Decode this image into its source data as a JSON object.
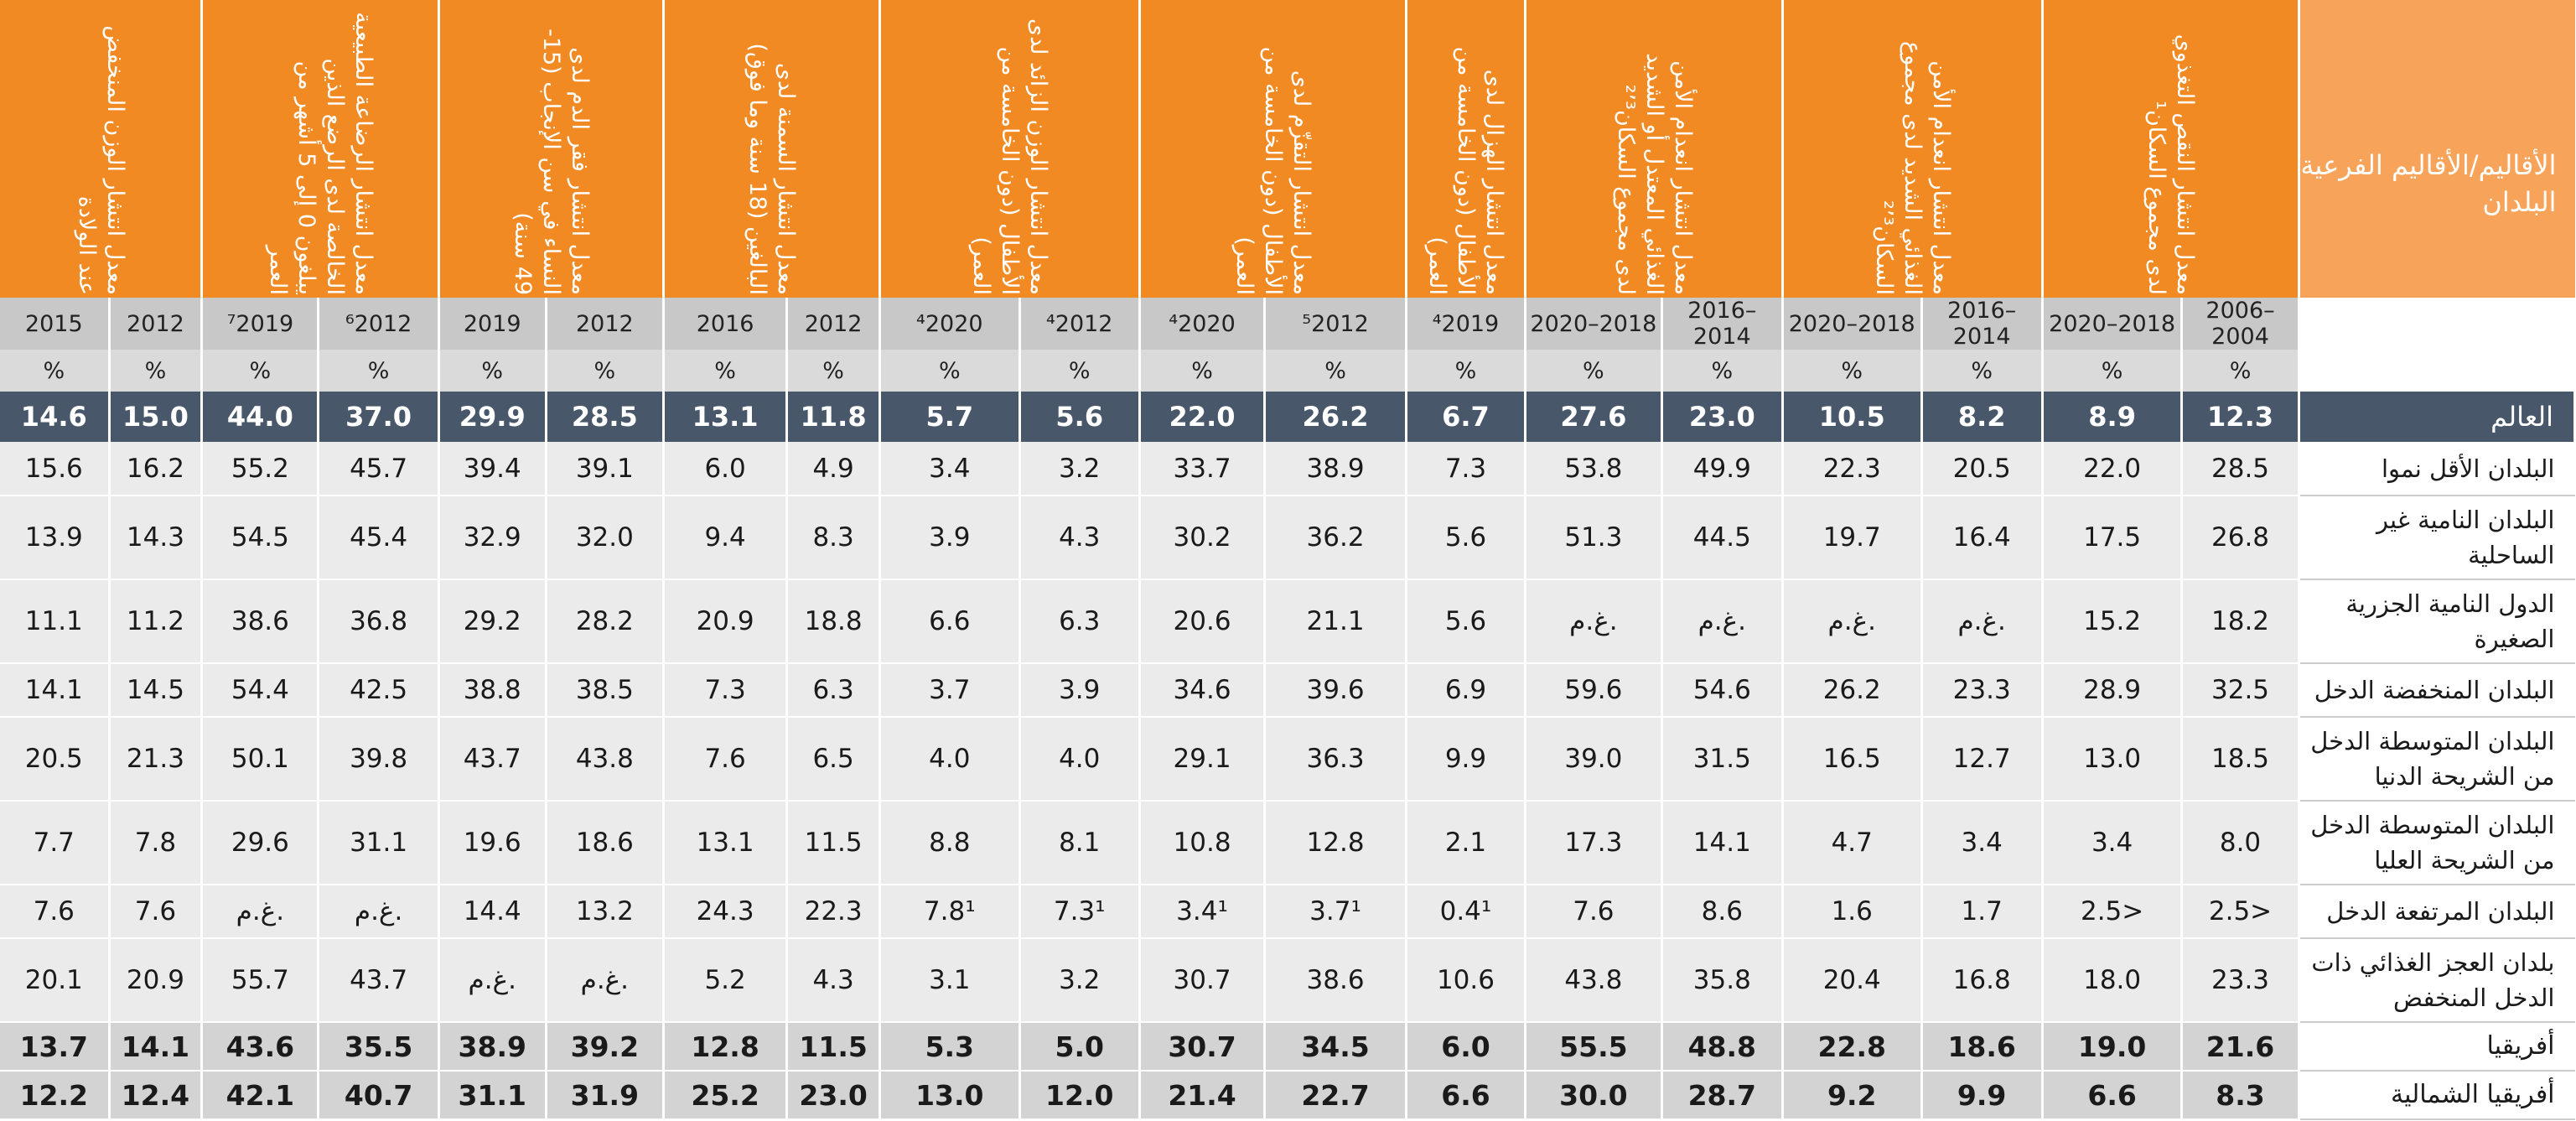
{
  "header": {
    "region_title": "الأقاليم/الأقاليم الفرعية/البلدان",
    "indicators": [
      {
        "id": "undernourishment",
        "label": "معدل انتشار النقص التغذوي لدى مجموع السكان¹"
      },
      {
        "id": "severe_food_insecurity",
        "label": "معدل انتشار انعدام الأمن الغذائي الشديد لدى مجموع السكان²٬³"
      },
      {
        "id": "moderate_severe_food_insecurity",
        "label": "معدل انتشار انعدام الأمن الغذائي المعتدل أو الشديد لدى مجموع السكان²٬³"
      },
      {
        "id": "wasting",
        "label": "معدل انتشار الهزال لدى الأطفال (دون الخامسة من العمر)"
      },
      {
        "id": "stunting",
        "label": "معدل انتشار التقزّم لدى الأطفال (دون الخامسة من العمر)"
      },
      {
        "id": "overweight_children",
        "label": "معدل انتشار الوزن الزائد لدى الأطفال (دون الخامسة من العمر)"
      },
      {
        "id": "obesity_adults",
        "label": "معدل انتشار السمنة لدى البالغين (18 سنة وما فوق)"
      },
      {
        "id": "anaemia_women",
        "label": "معدل انتشار فقر الدم لدى النساء في سن الإنجاب (15-49 سنة)"
      },
      {
        "id": "breastfeeding",
        "label": "معدل انتشار الرضاعة الطبيعية الخالصة لدى الرضع الذين يبلغون 0 إلى 5 أشهر من العمر"
      },
      {
        "id": "low_birthweight",
        "label": "معدل انتشار الوزن المنخفض عند الولادة"
      }
    ]
  },
  "years": [
    "2006–2004",
    "2020–2018",
    "2016–2014",
    "2020–2018",
    "2016–2014",
    "2020–2018",
    "⁴2019",
    "⁵2012",
    "⁴2020",
    "⁴2012",
    "⁴2020",
    "2012",
    "2016",
    "2012",
    "2019",
    "⁶2012",
    "⁷2019",
    "2012",
    "2015"
  ],
  "percent_label": "%",
  "world": {
    "name": "العالم",
    "values": [
      "12.3",
      "8.9",
      "8.2",
      "10.5",
      "23.0",
      "27.6",
      "6.7",
      "26.2",
      "22.0",
      "5.6",
      "5.7",
      "11.8",
      "13.1",
      "28.5",
      "29.9",
      "37.0",
      "44.0",
      "15.0",
      "14.6"
    ]
  },
  "rows": [
    {
      "name": "البلدان الأقل نموا",
      "values": [
        "28.5",
        "22.0",
        "20.5",
        "22.3",
        "49.9",
        "53.8",
        "7.3",
        "38.9",
        "33.7",
        "3.2",
        "3.4",
        "4.9",
        "6.0",
        "39.1",
        "39.4",
        "45.7",
        "55.2",
        "16.2",
        "15.6"
      ],
      "style": "plain"
    },
    {
      "name": "البلدان النامية غير الساحلية",
      "values": [
        "26.8",
        "17.5",
        "16.4",
        "19.7",
        "44.5",
        "51.3",
        "5.6",
        "36.2",
        "30.2",
        "4.3",
        "3.9",
        "8.3",
        "9.4",
        "32.0",
        "32.9",
        "45.4",
        "54.5",
        "14.3",
        "13.9"
      ],
      "style": "plain"
    },
    {
      "name": "الدول النامية الجزرية الصغيرة",
      "values": [
        "18.2",
        "15.2",
        "غ.م.",
        "غ.م.",
        "غ.م.",
        "غ.م.",
        "5.6",
        "21.1",
        "20.6",
        "6.3",
        "6.6",
        "18.8",
        "20.9",
        "28.2",
        "29.2",
        "36.8",
        "38.6",
        "11.2",
        "11.1"
      ],
      "style": "plain"
    },
    {
      "name": "البلدان المنخفضة الدخل",
      "values": [
        "32.5",
        "28.9",
        "23.3",
        "26.2",
        "54.6",
        "59.6",
        "6.9",
        "39.6",
        "34.6",
        "3.9",
        "3.7",
        "6.3",
        "7.3",
        "38.5",
        "38.8",
        "42.5",
        "54.4",
        "14.5",
        "14.1"
      ],
      "style": "plain"
    },
    {
      "name": "البلدان المتوسطة الدخل من الشريحة الدنيا",
      "values": [
        "18.5",
        "13.0",
        "12.7",
        "16.5",
        "31.5",
        "39.0",
        "9.9",
        "36.3",
        "29.1",
        "4.0",
        "4.0",
        "6.5",
        "7.6",
        "43.8",
        "43.7",
        "39.8",
        "50.1",
        "21.3",
        "20.5"
      ],
      "style": "plain"
    },
    {
      "name": "البلدان المتوسطة الدخل من الشريحة العليا",
      "values": [
        "8.0",
        "3.4",
        "3.4",
        "4.7",
        "14.1",
        "17.3",
        "2.1",
        "12.8",
        "10.8",
        "8.1",
        "8.8",
        "11.5",
        "13.1",
        "18.6",
        "19.6",
        "31.1",
        "29.6",
        "7.8",
        "7.7"
      ],
      "style": "plain"
    },
    {
      "name": "البلدان المرتفعة الدخل",
      "values": [
        "2.5>",
        "2.5>",
        "1.7",
        "1.6",
        "8.6",
        "7.6",
        "0.4¹",
        "3.7¹",
        "3.4¹",
        "7.3¹",
        "7.8¹",
        "22.3",
        "24.3",
        "13.2",
        "14.4",
        "غ.م.",
        "غ.م.",
        "7.6",
        "7.6"
      ],
      "style": "plain"
    },
    {
      "name": "بلدان العجز الغذائي ذات الدخل المنخفض",
      "values": [
        "23.3",
        "18.0",
        "16.8",
        "20.4",
        "35.8",
        "43.8",
        "10.6",
        "38.6",
        "30.7",
        "3.2",
        "3.1",
        "4.3",
        "5.2",
        "غ.م.",
        "غ.م.",
        "43.7",
        "55.7",
        "20.9",
        "20.1"
      ],
      "style": "plain"
    },
    {
      "name": "أفريقيا",
      "values": [
        "21.6",
        "19.0",
        "18.6",
        "22.8",
        "48.8",
        "55.5",
        "6.0",
        "34.5",
        "30.7",
        "5.0",
        "5.3",
        "11.5",
        "12.8",
        "39.2",
        "38.9",
        "35.5",
        "43.6",
        "14.1",
        "13.7"
      ],
      "style": "bold"
    },
    {
      "name": "أفريقيا الشمالية",
      "values": [
        "8.3",
        "6.6",
        "9.9",
        "9.2",
        "28.7",
        "30.0",
        "6.6",
        "22.7",
        "21.4",
        "12.0",
        "13.0",
        "23.0",
        "25.2",
        "31.9",
        "31.1",
        "40.7",
        "42.1",
        "12.4",
        "12.2"
      ],
      "style": "bold"
    }
  ]
}
